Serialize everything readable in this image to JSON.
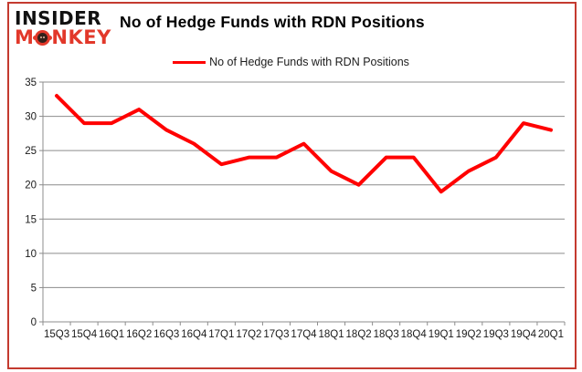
{
  "header": {
    "title": "No of Hedge Funds with RDN Positions"
  },
  "logo": {
    "line1": "INSIDER",
    "line2_prefix": "M",
    "line2_suffix": "NKEY"
  },
  "legend": {
    "label": "No of Hedge Funds with RDN Positions"
  },
  "chart_data": {
    "type": "line",
    "title": "No of Hedge Funds with RDN Positions",
    "series_name": "No of Hedge Funds with RDN Positions",
    "categories": [
      "15Q3",
      "15Q4",
      "16Q1",
      "16Q2",
      "16Q3",
      "16Q4",
      "17Q1",
      "17Q2",
      "17Q3",
      "17Q4",
      "18Q1",
      "18Q2",
      "18Q3",
      "18Q4",
      "19Q1",
      "19Q2",
      "19Q3",
      "19Q4",
      "20Q1"
    ],
    "values": [
      33,
      29,
      29,
      31,
      28,
      26,
      23,
      24,
      24,
      26,
      22,
      20,
      24,
      24,
      19,
      22,
      24,
      29,
      28
    ],
    "ylim": [
      0,
      35
    ],
    "y_ticks": [
      0,
      5,
      10,
      15,
      20,
      25,
      30,
      35
    ],
    "grid": true,
    "legend_position": "top",
    "line_color": "#ff0000"
  },
  "colors": {
    "line": "#ff0000",
    "grid": "#8c8c8c",
    "axis_text": "#1a1a1a",
    "frame": "#c43a2f",
    "logo_red": "#e2382a",
    "title_text": "#000000"
  }
}
